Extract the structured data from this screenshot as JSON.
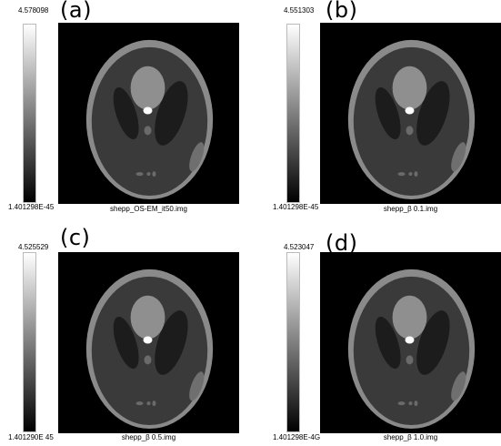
{
  "panels": [
    {
      "letter": "(a)",
      "max": "4.578098",
      "min": "1.401298E-45",
      "caption": "shepp_OS-EM_it50.img"
    },
    {
      "letter": "(b)",
      "max": "4.551303",
      "min": "1.401298E-45",
      "caption": "shepp_β 0.1.img"
    },
    {
      "letter": "(c)",
      "max": "4.525529",
      "min": "1.401290E 45",
      "caption": "shepp_β 0.5.img"
    },
    {
      "letter": "(d)",
      "max": "4.523047",
      "min": "1.401298E-4G",
      "caption": "shepp_β 1.0.img"
    }
  ]
}
